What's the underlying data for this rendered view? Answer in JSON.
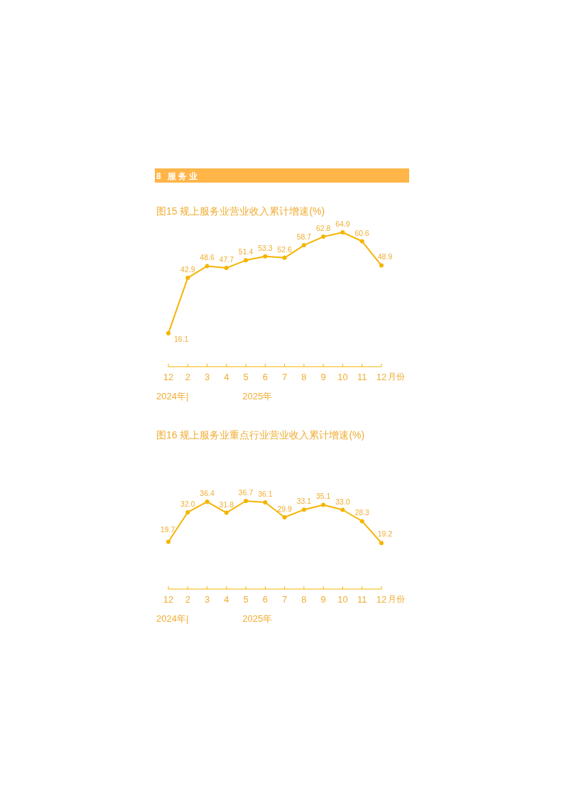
{
  "chart_data": [
    {
      "type": "line",
      "title": "8 服务业",
      "subtitle": "图15  规上服务业营业收入累计增速(%)",
      "categories": [
        "12",
        "2",
        "3",
        "4",
        "5",
        "6",
        "7",
        "8",
        "9",
        "10",
        "11",
        "12"
      ],
      "xlabel": "月份",
      "values": [
        16.1,
        42.9,
        48.6,
        47.7,
        51.4,
        53.3,
        52.6,
        58.7,
        62.8,
        64.9,
        60.6,
        48.9
      ],
      "color": "#f5b400",
      "marker": "circle",
      "value_labels": [
        "16.1",
        "42.9",
        "48.6",
        "47.7",
        "51.4",
        "53.3",
        "52.6",
        "58.7",
        "62.8",
        "64.9",
        "60.6",
        "48.9"
      ],
      "annotations": [
        "2024年|",
        "2025年"
      ]
    },
    {
      "type": "line",
      "title": "图16  规上服务业重点行业营业收入累计增速(%)",
      "categories": [
        "12",
        "2",
        "3",
        "4",
        "5",
        "6",
        "7",
        "8",
        "9",
        "10",
        "11",
        "12"
      ],
      "xlabel": "月份",
      "values": [
        19.7,
        32.0,
        36.4,
        31.8,
        36.7,
        36.1,
        29.9,
        33.1,
        35.1,
        33.0,
        28.3,
        19.2
      ],
      "color": "#f5b400",
      "marker": "circle",
      "value_labels": [
        "19.7",
        "32.0",
        "36.4",
        "31.8",
        "36.7",
        "36.1",
        "29.9",
        "33.1",
        "35.1",
        "33.0",
        "28.3",
        "19.2"
      ],
      "annotations": [
        "2024年|",
        "2025年"
      ]
    }
  ]
}
